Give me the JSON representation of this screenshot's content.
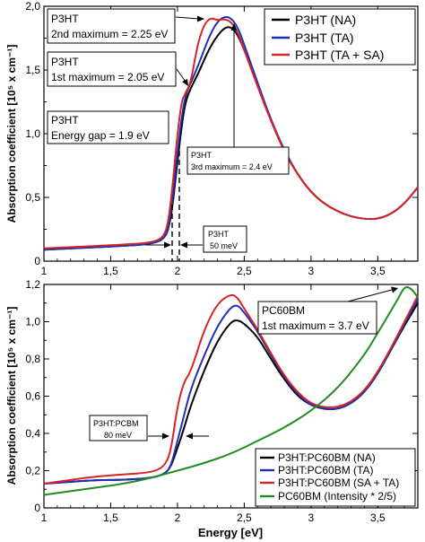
{
  "chart_data": [
    {
      "type": "line",
      "xlim": [
        1,
        3.8
      ],
      "ylim": [
        0,
        2.0
      ],
      "x_ticks": [
        "1",
        "1,5",
        "2",
        "2,5",
        "3",
        "3,5"
      ],
      "y_ticks": [
        "0",
        "0,5",
        "1,0",
        "1,5",
        "2,0"
      ],
      "ylabel": "Absorption coefficient [10⁵ x cm⁻¹]",
      "legend_position": "top-right",
      "grid": false,
      "series": [
        {
          "name": "P3HT (NA)",
          "color": "#000000",
          "x": [
            1.0,
            1.2,
            1.4,
            1.6,
            1.75,
            1.85,
            1.9,
            1.93,
            1.96,
            2.0,
            2.03,
            2.06,
            2.1,
            2.15,
            2.2,
            2.25,
            2.3,
            2.35,
            2.4,
            2.45,
            2.5,
            2.6,
            2.7,
            2.8,
            2.9,
            3.0,
            3.1,
            3.2,
            3.3,
            3.4,
            3.5,
            3.6,
            3.7,
            3.8
          ],
          "y": [
            0.09,
            0.1,
            0.11,
            0.12,
            0.13,
            0.15,
            0.18,
            0.24,
            0.4,
            0.78,
            1.05,
            1.25,
            1.36,
            1.46,
            1.58,
            1.69,
            1.77,
            1.83,
            1.84,
            1.78,
            1.66,
            1.38,
            1.1,
            0.86,
            0.68,
            0.54,
            0.45,
            0.39,
            0.35,
            0.33,
            0.33,
            0.37,
            0.45,
            0.58
          ]
        },
        {
          "name": "P3HT (TA)",
          "color": "#1f2fb5",
          "x": [
            1.0,
            1.2,
            1.4,
            1.6,
            1.75,
            1.85,
            1.9,
            1.93,
            1.96,
            2.0,
            2.03,
            2.06,
            2.1,
            2.15,
            2.2,
            2.25,
            2.3,
            2.35,
            2.4,
            2.45,
            2.5,
            2.6,
            2.7,
            2.8,
            2.9,
            3.0,
            3.1,
            3.2,
            3.3,
            3.4,
            3.5,
            3.6,
            3.7,
            3.8
          ],
          "y": [
            0.09,
            0.1,
            0.11,
            0.12,
            0.13,
            0.15,
            0.18,
            0.25,
            0.45,
            0.85,
            1.12,
            1.3,
            1.4,
            1.52,
            1.66,
            1.79,
            1.88,
            1.92,
            1.91,
            1.84,
            1.7,
            1.4,
            1.11,
            0.87,
            0.68,
            0.54,
            0.45,
            0.39,
            0.35,
            0.33,
            0.33,
            0.37,
            0.45,
            0.58
          ]
        },
        {
          "name": "P3HT (TA + SA)",
          "color": "#d62424",
          "x": [
            1.0,
            1.2,
            1.4,
            1.6,
            1.75,
            1.85,
            1.9,
            1.93,
            1.96,
            2.0,
            2.03,
            2.06,
            2.1,
            2.15,
            2.2,
            2.25,
            2.3,
            2.35,
            2.4,
            2.45,
            2.5,
            2.6,
            2.7,
            2.8,
            2.9,
            3.0,
            3.1,
            3.2,
            3.3,
            3.4,
            3.5,
            3.6,
            3.7,
            3.8
          ],
          "y": [
            0.1,
            0.11,
            0.12,
            0.13,
            0.14,
            0.16,
            0.2,
            0.3,
            0.55,
            1.0,
            1.25,
            1.32,
            1.4,
            1.7,
            1.86,
            1.91,
            1.89,
            1.9,
            1.88,
            1.8,
            1.66,
            1.37,
            1.1,
            0.86,
            0.68,
            0.54,
            0.45,
            0.39,
            0.35,
            0.33,
            0.33,
            0.37,
            0.45,
            0.58
          ]
        }
      ],
      "annotations": [
        {
          "lines": [
            "P3HT",
            "2nd maximum = 2.25 eV"
          ]
        },
        {
          "lines": [
            "P3HT",
            "1st maximum = 2.05 eV"
          ]
        },
        {
          "lines": [
            "P3HT",
            "Energy gap = 1.9 eV"
          ]
        },
        {
          "lines": [
            "P3HT",
            "3rd maximum = 2.4 eV"
          ]
        },
        {
          "lines": [
            "P3HT",
            "50 meV"
          ]
        }
      ]
    },
    {
      "type": "line",
      "xlim": [
        1,
        3.8
      ],
      "ylim": [
        0,
        1.2
      ],
      "x_ticks": [
        "1",
        "1,5",
        "2",
        "2,5",
        "3",
        "3,5"
      ],
      "y_ticks": [
        "0",
        "0,2",
        "0,4",
        "0,6",
        "0,8",
        "1,0",
        "1,2"
      ],
      "xlabel": "Energy [eV]",
      "ylabel": "Absorption coefficient [10⁵ x cm⁻¹]",
      "legend_position": "bottom-right",
      "grid": false,
      "series": [
        {
          "name": "P3HT:PC60BM (NA)",
          "color": "#000000",
          "x": [
            1.0,
            1.2,
            1.4,
            1.6,
            1.8,
            1.9,
            1.95,
            2.0,
            2.05,
            2.1,
            2.2,
            2.3,
            2.4,
            2.45,
            2.5,
            2.6,
            2.7,
            2.8,
            2.9,
            3.0,
            3.1,
            3.2,
            3.3,
            3.4,
            3.5,
            3.6,
            3.7,
            3.8
          ],
          "y": [
            0.13,
            0.14,
            0.15,
            0.15,
            0.16,
            0.18,
            0.22,
            0.32,
            0.43,
            0.55,
            0.74,
            0.9,
            1.0,
            1.01,
            0.99,
            0.92,
            0.8,
            0.69,
            0.6,
            0.55,
            0.53,
            0.53,
            0.56,
            0.62,
            0.72,
            0.85,
            0.98,
            1.1
          ]
        },
        {
          "name": "P3HT:PC60BM (TA)",
          "color": "#1f2fb5",
          "x": [
            1.0,
            1.2,
            1.4,
            1.6,
            1.8,
            1.9,
            1.95,
            2.0,
            2.05,
            2.1,
            2.2,
            2.3,
            2.4,
            2.45,
            2.5,
            2.6,
            2.7,
            2.8,
            2.9,
            3.0,
            3.1,
            3.2,
            3.3,
            3.4,
            3.5,
            3.6,
            3.7,
            3.8
          ],
          "y": [
            0.13,
            0.14,
            0.15,
            0.15,
            0.16,
            0.18,
            0.22,
            0.36,
            0.5,
            0.64,
            0.82,
            0.98,
            1.08,
            1.09,
            1.05,
            0.95,
            0.82,
            0.7,
            0.61,
            0.55,
            0.53,
            0.53,
            0.56,
            0.62,
            0.72,
            0.85,
            0.99,
            1.12
          ]
        },
        {
          "name": "P3HT:PC60BM (SA + TA)",
          "color": "#d62424",
          "x": [
            1.0,
            1.2,
            1.4,
            1.6,
            1.8,
            1.9,
            1.95,
            2.0,
            2.05,
            2.1,
            2.2,
            2.3,
            2.4,
            2.45,
            2.5,
            2.6,
            2.7,
            2.8,
            2.9,
            3.0,
            3.1,
            3.2,
            3.3,
            3.4,
            3.5,
            3.6,
            3.7,
            3.8
          ],
          "y": [
            0.13,
            0.15,
            0.17,
            0.18,
            0.19,
            0.22,
            0.3,
            0.55,
            0.68,
            0.73,
            0.96,
            1.1,
            1.15,
            1.13,
            1.07,
            0.96,
            0.83,
            0.71,
            0.62,
            0.56,
            0.54,
            0.54,
            0.57,
            0.63,
            0.73,
            0.86,
            1.0,
            1.14
          ]
        },
        {
          "name": "PC60BM (Intensity * 2/5)",
          "color": "#1e8c1e",
          "x": [
            1.0,
            1.2,
            1.4,
            1.6,
            1.8,
            2.0,
            2.2,
            2.4,
            2.6,
            2.8,
            3.0,
            3.2,
            3.4,
            3.5,
            3.6,
            3.65,
            3.7,
            3.75,
            3.8
          ],
          "y": [
            0.07,
            0.09,
            0.11,
            0.13,
            0.16,
            0.2,
            0.24,
            0.29,
            0.36,
            0.43,
            0.52,
            0.64,
            0.82,
            0.94,
            1.06,
            1.12,
            1.19,
            1.18,
            1.13
          ]
        }
      ],
      "annotations": [
        {
          "lines": [
            "PC60BM",
            "1st maximum = 3.7 eV"
          ]
        },
        {
          "lines": [
            "P3HT:PCBM",
            "80 meV"
          ]
        }
      ]
    }
  ]
}
